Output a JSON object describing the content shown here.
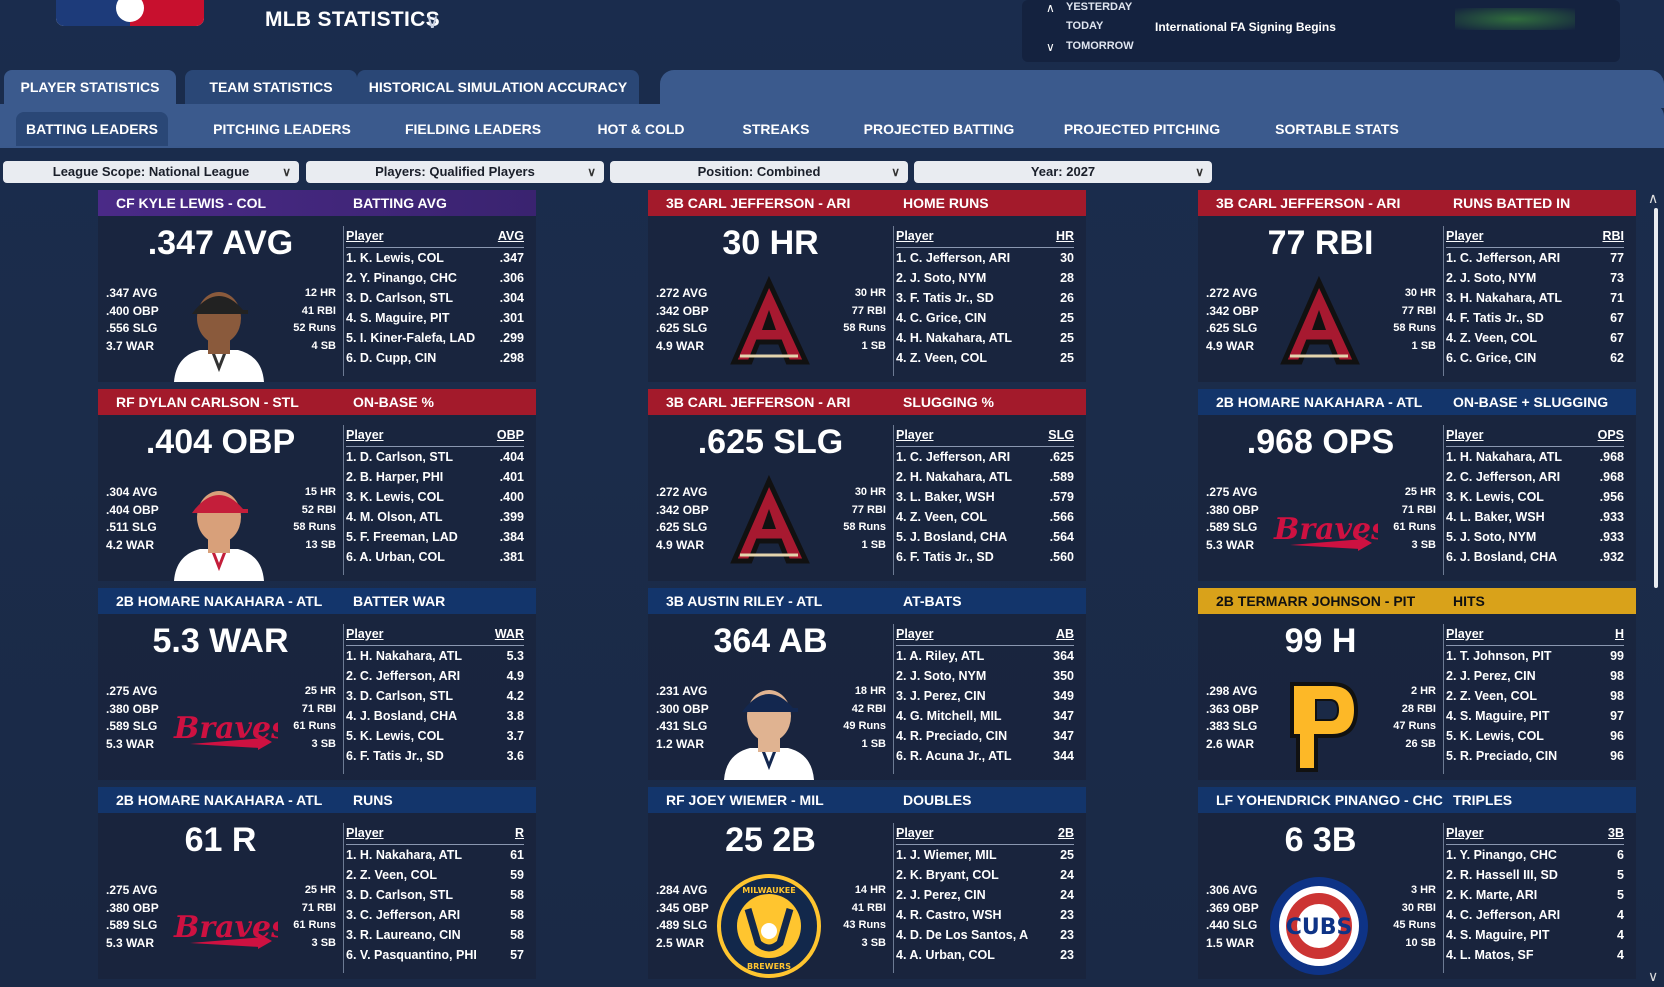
{
  "app": {
    "title": "MLB STATISTICS"
  },
  "news": {
    "yesterday": "YESTERDAY",
    "today": "TODAY",
    "tomorrow": "TOMORROW",
    "today_event": "International FA Signing Begins"
  },
  "tabs": [
    "PLAYER STATISTICS",
    "TEAM STATISTICS",
    "HISTORICAL SIMULATION ACCURACY"
  ],
  "subtabs": [
    "BATTING LEADERS",
    "PITCHING LEADERS",
    "FIELDING LEADERS",
    "HOT & COLD",
    "STREAKS",
    "PROJECTED BATTING",
    "PROJECTED PITCHING",
    "SORTABLE STATS"
  ],
  "filters": [
    "League Scope: National League",
    "Players: Qualified Players",
    "Position: Combined",
    "Year: 2027"
  ],
  "cards": [
    {
      "player": "CF KYLE LEWIS - COL",
      "category": "BATTING AVG",
      "big": ".347 AVG",
      "stats_left": [
        ".347 AVG",
        ".400 OBP",
        ".556 SLG",
        "3.7 WAR"
      ],
      "stats_right": [
        "12 HR",
        "41 RBI",
        "52 Runs",
        "4 SB"
      ],
      "col_player": "Player",
      "col_stat": "AVG",
      "rows": [
        [
          "1. K. Lewis, COL",
          ".347"
        ],
        [
          "2. Y. Pinango, CHC",
          ".306"
        ],
        [
          "3. D. Carlson, STL",
          ".304"
        ],
        [
          "4. S. Maguire, PIT",
          ".301"
        ],
        [
          "5. I. Kiner-Falefa, LAD",
          ".299"
        ],
        [
          "6. D. Cupp, CIN",
          ".298"
        ]
      ]
    },
    {
      "player": "3B CARL JEFFERSON - ARI",
      "category": "HOME RUNS",
      "big": "30 HR",
      "stats_left": [
        ".272 AVG",
        ".342 OBP",
        ".625 SLG",
        "4.9 WAR"
      ],
      "stats_right": [
        "30 HR",
        "77 RBI",
        "58 Runs",
        "1 SB"
      ],
      "col_player": "Player",
      "col_stat": "HR",
      "rows": [
        [
          "1. C. Jefferson, ARI",
          "30"
        ],
        [
          "2. J. Soto, NYM",
          "28"
        ],
        [
          "3. F. Tatis Jr., SD",
          "26"
        ],
        [
          "4. C. Grice, CIN",
          "25"
        ],
        [
          "4. H. Nakahara, ATL",
          "25"
        ],
        [
          "4. Z. Veen, COL",
          "25"
        ]
      ]
    },
    {
      "player": "3B CARL JEFFERSON - ARI",
      "category": "RUNS BATTED IN",
      "big": "77 RBI",
      "stats_left": [
        ".272 AVG",
        ".342 OBP",
        ".625 SLG",
        "4.9 WAR"
      ],
      "stats_right": [
        "30 HR",
        "77 RBI",
        "58 Runs",
        "1 SB"
      ],
      "col_player": "Player",
      "col_stat": "RBI",
      "rows": [
        [
          "1. C. Jefferson, ARI",
          "77"
        ],
        [
          "2. J. Soto, NYM",
          "73"
        ],
        [
          "3. H. Nakahara, ATL",
          "71"
        ],
        [
          "4. F. Tatis Jr., SD",
          "67"
        ],
        [
          "4. Z. Veen, COL",
          "67"
        ],
        [
          "6. C. Grice, CIN",
          "62"
        ]
      ]
    },
    {
      "player": "RF DYLAN CARLSON - STL",
      "category": "ON-BASE %",
      "big": ".404 OBP",
      "stats_left": [
        ".304 AVG",
        ".404 OBP",
        ".511 SLG",
        "4.2 WAR"
      ],
      "stats_right": [
        "15 HR",
        "52 RBI",
        "58 Runs",
        "13 SB"
      ],
      "col_player": "Player",
      "col_stat": "OBP",
      "rows": [
        [
          "1. D. Carlson, STL",
          ".404"
        ],
        [
          "2. B. Harper, PHI",
          ".401"
        ],
        [
          "3. K. Lewis, COL",
          ".400"
        ],
        [
          "4. M. Olson, ATL",
          ".399"
        ],
        [
          "5. F. Freeman, LAD",
          ".384"
        ],
        [
          "6. A. Urban, COL",
          ".381"
        ]
      ]
    },
    {
      "player": "3B CARL JEFFERSON - ARI",
      "category": "SLUGGING %",
      "big": ".625 SLG",
      "stats_left": [
        ".272 AVG",
        ".342 OBP",
        ".625 SLG",
        "4.9 WAR"
      ],
      "stats_right": [
        "30 HR",
        "77 RBI",
        "58 Runs",
        "1 SB"
      ],
      "col_player": "Player",
      "col_stat": "SLG",
      "rows": [
        [
          "1. C. Jefferson, ARI",
          ".625"
        ],
        [
          "2. H. Nakahara, ATL",
          ".589"
        ],
        [
          "3. L. Baker, WSH",
          ".579"
        ],
        [
          "4. Z. Veen, COL",
          ".566"
        ],
        [
          "5. J. Bosland, CHA",
          ".564"
        ],
        [
          "6. F. Tatis Jr., SD",
          ".560"
        ]
      ]
    },
    {
      "player": "2B HOMARE NAKAHARA - ATL",
      "category": "ON-BASE + SLUGGING",
      "big": ".968 OPS",
      "stats_left": [
        ".275 AVG",
        ".380 OBP",
        ".589 SLG",
        "5.3 WAR"
      ],
      "stats_right": [
        "25 HR",
        "71 RBI",
        "61 Runs",
        "3 SB"
      ],
      "col_player": "Player",
      "col_stat": "OPS",
      "rows": [
        [
          "1. H. Nakahara, ATL",
          ".968"
        ],
        [
          "2. C. Jefferson, ARI",
          ".968"
        ],
        [
          "3. K. Lewis, COL",
          ".956"
        ],
        [
          "4. L. Baker, WSH",
          ".933"
        ],
        [
          "5. J. Soto, NYM",
          ".933"
        ],
        [
          "6. J. Bosland, CHA",
          ".932"
        ]
      ]
    },
    {
      "player": "2B HOMARE NAKAHARA - ATL",
      "category": "BATTER WAR",
      "big": "5.3 WAR",
      "stats_left": [
        ".275 AVG",
        ".380 OBP",
        ".589 SLG",
        "5.3 WAR"
      ],
      "stats_right": [
        "25 HR",
        "71 RBI",
        "61 Runs",
        "3 SB"
      ],
      "col_player": "Player",
      "col_stat": "WAR",
      "rows": [
        [
          "1. H. Nakahara, ATL",
          "5.3"
        ],
        [
          "2. C. Jefferson, ARI",
          "4.9"
        ],
        [
          "3. D. Carlson, STL",
          "4.2"
        ],
        [
          "4. J. Bosland, CHA",
          "3.8"
        ],
        [
          "5. K. Lewis, COL",
          "3.7"
        ],
        [
          "6. F. Tatis Jr., SD",
          "3.6"
        ]
      ]
    },
    {
      "player": "3B AUSTIN RILEY - ATL",
      "category": "AT-BATS",
      "big": "364 AB",
      "stats_left": [
        ".231 AVG",
        ".300 OBP",
        ".431 SLG",
        "1.2 WAR"
      ],
      "stats_right": [
        "18 HR",
        "42 RBI",
        "49 Runs",
        "1 SB"
      ],
      "col_player": "Player",
      "col_stat": "AB",
      "rows": [
        [
          "1. A. Riley, ATL",
          "364"
        ],
        [
          "2. J. Soto, NYM",
          "350"
        ],
        [
          "3. J. Perez, CIN",
          "349"
        ],
        [
          "4. G. Mitchell, MIL",
          "347"
        ],
        [
          "4. R. Preciado, CIN",
          "347"
        ],
        [
          "6. R. Acuna Jr., ATL",
          "344"
        ]
      ]
    },
    {
      "player": "2B TERMARR JOHNSON - PIT",
      "category": "HITS",
      "big": "99 H",
      "stats_left": [
        ".298 AVG",
        ".363 OBP",
        ".383 SLG",
        "2.6 WAR"
      ],
      "stats_right": [
        "2 HR",
        "28 RBI",
        "47 Runs",
        "26 SB"
      ],
      "col_player": "Player",
      "col_stat": "H",
      "rows": [
        [
          "1. T. Johnson, PIT",
          "99"
        ],
        [
          "2. J. Perez, CIN",
          "98"
        ],
        [
          "2. Z. Veen, COL",
          "98"
        ],
        [
          "4. S. Maguire, PIT",
          "97"
        ],
        [
          "5. K. Lewis, COL",
          "96"
        ],
        [
          "5. R. Preciado, CIN",
          "96"
        ]
      ]
    },
    {
      "player": "2B HOMARE NAKAHARA - ATL",
      "category": "RUNS",
      "big": "61 R",
      "stats_left": [
        ".275 AVG",
        ".380 OBP",
        ".589 SLG",
        "5.3 WAR"
      ],
      "stats_right": [
        "25 HR",
        "71 RBI",
        "61 Runs",
        "3 SB"
      ],
      "col_player": "Player",
      "col_stat": "R",
      "rows": [
        [
          "1. H. Nakahara, ATL",
          "61"
        ],
        [
          "2. Z. Veen, COL",
          "59"
        ],
        [
          "3. D. Carlson, STL",
          "58"
        ],
        [
          "3. C. Jefferson, ARI",
          "58"
        ],
        [
          "3. R. Laureano, CIN",
          "58"
        ],
        [
          "6. V. Pasquantino, PHI",
          "57"
        ]
      ]
    },
    {
      "player": "RF JOEY WIEMER - MIL",
      "category": "DOUBLES",
      "big": "25 2B",
      "stats_left": [
        ".284 AVG",
        ".345 OBP",
        ".489 SLG",
        "2.5 WAR"
      ],
      "stats_right": [
        "14 HR",
        "41 RBI",
        "43 Runs",
        "3 SB"
      ],
      "col_player": "Player",
      "col_stat": "2B",
      "rows": [
        [
          "1. J. Wiemer, MIL",
          "25"
        ],
        [
          "2. K. Bryant, COL",
          "24"
        ],
        [
          "2. J. Perez, CIN",
          "24"
        ],
        [
          "4. R. Castro, WSH",
          "23"
        ],
        [
          "4. D. De Los Santos, A",
          "23"
        ],
        [
          "4. A. Urban, COL",
          "23"
        ]
      ]
    },
    {
      "player": "LF YOHENDRICK PINANGO - CHC",
      "category": "TRIPLES",
      "big": "6 3B",
      "stats_left": [
        ".306 AVG",
        ".369 OBP",
        ".440 SLG",
        "1.5 WAR"
      ],
      "stats_right": [
        "3 HR",
        "30 RBI",
        "45 Runs",
        "10 SB"
      ],
      "col_player": "Player",
      "col_stat": "3B",
      "rows": [
        [
          "1. Y. Pinango, CHC",
          "6"
        ],
        [
          "2. R. Hassell III, SD",
          "5"
        ],
        [
          "2. K. Marte, ARI",
          "5"
        ],
        [
          "4. C. Jefferson, ARI",
          "4"
        ],
        [
          "4. S. Maguire, PIT",
          "4"
        ],
        [
          "4. L. Matos, SF",
          "4"
        ]
      ]
    }
  ],
  "logos": {
    "braves": "Braves",
    "milwaukee": "MILWAUKEE",
    "brewers": "BREWERS",
    "cubs": "CUBS"
  },
  "colors": {
    "purple": "#4a2a87",
    "red": "#a31a2b",
    "navy": "#13356b",
    "gold": "#d9a21a"
  }
}
